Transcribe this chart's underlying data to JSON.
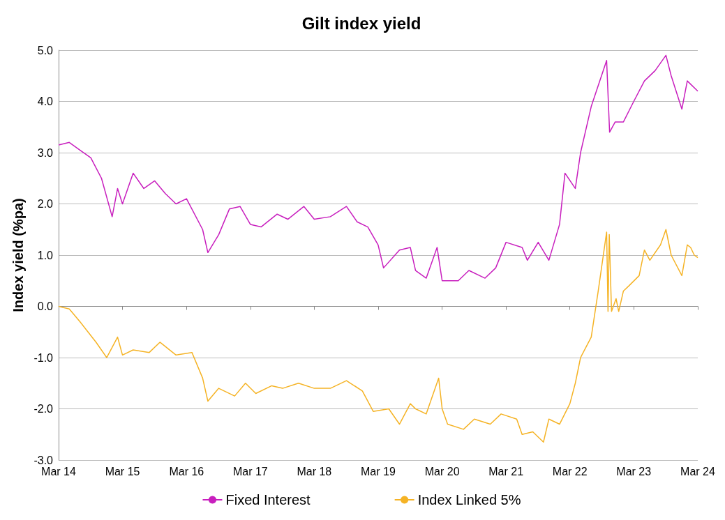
{
  "chart_data": {
    "type": "line",
    "title": "Gilt index yield",
    "ylabel": "Index yield (%pa)",
    "xlim": [
      "2014-03",
      "2024-03"
    ],
    "xticks": [
      {
        "value": "2014-03",
        "label": "Mar 14"
      },
      {
        "value": "2015-03",
        "label": "Mar 15"
      },
      {
        "value": "2016-03",
        "label": "Mar 16"
      },
      {
        "value": "2017-03",
        "label": "Mar 17"
      },
      {
        "value": "2018-03",
        "label": "Mar 18"
      },
      {
        "value": "2019-03",
        "label": "Mar 19"
      },
      {
        "value": "2020-03",
        "label": "Mar 20"
      },
      {
        "value": "2021-03",
        "label": "Mar 21"
      },
      {
        "value": "2022-03",
        "label": "Mar 22"
      },
      {
        "value": "2023-03",
        "label": "Mar 23"
      },
      {
        "value": "2024-03",
        "label": "Mar 24"
      }
    ],
    "ylim": [
      -3,
      5
    ],
    "yticks": [
      {
        "value": -3,
        "label": "-3.0"
      },
      {
        "value": -2,
        "label": "-2.0"
      },
      {
        "value": -1,
        "label": "-1.0"
      },
      {
        "value": 0,
        "label": "0.0"
      },
      {
        "value": 1,
        "label": "1.0"
      },
      {
        "value": 2,
        "label": "2.0"
      },
      {
        "value": 3,
        "label": "3.0"
      },
      {
        "value": 4,
        "label": "4.0"
      },
      {
        "value": 5,
        "label": "5.0"
      }
    ],
    "grid": "y",
    "legend": "bottom",
    "series": [
      {
        "name": "Fixed Interest",
        "color": "#c81fbe",
        "x": [
          "2014-03",
          "2014-05",
          "2014-07",
          "2014-09",
          "2014-11",
          "2015-01",
          "2015-02",
          "2015-03",
          "2015-05",
          "2015-07",
          "2015-09",
          "2015-11",
          "2016-01",
          "2016-03",
          "2016-06",
          "2016-07",
          "2016-09",
          "2016-11",
          "2017-01",
          "2017-03",
          "2017-05",
          "2017-08",
          "2017-10",
          "2018-01",
          "2018-03",
          "2018-06",
          "2018-09",
          "2018-11",
          "2019-01",
          "2019-03",
          "2019-04",
          "2019-07",
          "2019-09",
          "2019-10",
          "2019-12",
          "2020-02",
          "2020-03",
          "2020-06",
          "2020-08",
          "2020-11",
          "2021-01",
          "2021-03",
          "2021-06",
          "2021-07",
          "2021-09",
          "2021-11",
          "2022-01",
          "2022-02",
          "2022-04",
          "2022-05",
          "2022-07",
          "2022-09-27",
          "2022-10-14",
          "2022-11-15",
          "2023-01",
          "2023-03",
          "2023-05",
          "2023-07",
          "2023-09",
          "2023-10",
          "2023-12",
          "2024-01",
          "2024-03"
        ],
        "values": [
          3.15,
          3.2,
          3.05,
          2.9,
          2.5,
          1.75,
          2.3,
          2.0,
          2.6,
          2.3,
          2.45,
          2.2,
          2.0,
          2.1,
          1.5,
          1.05,
          1.4,
          1.9,
          1.95,
          1.6,
          1.55,
          1.8,
          1.7,
          1.95,
          1.7,
          1.75,
          1.95,
          1.65,
          1.55,
          1.2,
          0.75,
          1.1,
          1.15,
          0.7,
          0.55,
          1.15,
          0.5,
          0.5,
          0.7,
          0.55,
          0.75,
          1.25,
          1.15,
          0.9,
          1.25,
          0.9,
          1.6,
          2.6,
          2.3,
          3.0,
          3.9,
          4.8,
          3.4,
          3.6,
          3.6,
          4.0,
          4.4,
          4.6,
          4.9,
          4.5,
          3.85,
          4.4,
          4.2
        ]
      },
      {
        "name": "Index Linked 5%",
        "color": "#f5b325",
        "x": [
          "2014-03",
          "2014-05",
          "2014-07",
          "2014-10",
          "2014-12",
          "2015-02",
          "2015-03",
          "2015-05",
          "2015-08",
          "2015-10",
          "2016-01",
          "2016-04",
          "2016-06",
          "2016-07",
          "2016-09",
          "2016-12",
          "2017-02",
          "2017-04",
          "2017-07",
          "2017-09",
          "2017-12",
          "2018-03",
          "2018-06",
          "2018-09",
          "2018-12",
          "2019-02",
          "2019-05",
          "2019-07",
          "2019-09",
          "2019-10",
          "2019-12",
          "2020-02-10",
          "2020-03-01",
          "2020-04",
          "2020-07",
          "2020-09",
          "2020-12",
          "2021-02",
          "2021-05",
          "2021-06",
          "2021-08",
          "2021-10",
          "2021-11",
          "2022-01",
          "2022-03",
          "2022-04",
          "2022-05",
          "2022-07",
          "2022-08-10",
          "2022-09-27",
          "2022-10-05",
          "2022-10-12",
          "2022-10-25",
          "2022-11-20",
          "2022-12-05",
          "2023-01",
          "2023-02",
          "2023-04",
          "2023-05",
          "2023-06",
          "2023-08",
          "2023-09",
          "2023-10",
          "2023-12",
          "2024-01",
          "2024-01-20",
          "2024-02-10",
          "2024-03"
        ],
        "values": [
          0.0,
          -0.05,
          -0.3,
          -0.7,
          -1.0,
          -0.6,
          -0.95,
          -0.85,
          -0.9,
          -0.7,
          -0.95,
          -0.9,
          -1.4,
          -1.85,
          -1.6,
          -1.75,
          -1.5,
          -1.7,
          -1.55,
          -1.6,
          -1.5,
          -1.6,
          -1.6,
          -1.45,
          -1.65,
          -2.05,
          -2.0,
          -2.3,
          -1.9,
          -2.0,
          -2.1,
          -1.4,
          -2.0,
          -2.3,
          -2.4,
          -2.2,
          -2.3,
          -2.1,
          -2.2,
          -2.5,
          -2.45,
          -2.65,
          -2.2,
          -2.3,
          -1.9,
          -1.5,
          -1.0,
          -0.6,
          0.3,
          1.45,
          -0.1,
          1.4,
          -0.1,
          0.15,
          -0.1,
          0.3,
          0.4,
          0.6,
          1.1,
          0.9,
          1.2,
          1.5,
          1.0,
          0.6,
          1.2,
          1.15,
          1.0,
          0.95
        ]
      }
    ]
  }
}
